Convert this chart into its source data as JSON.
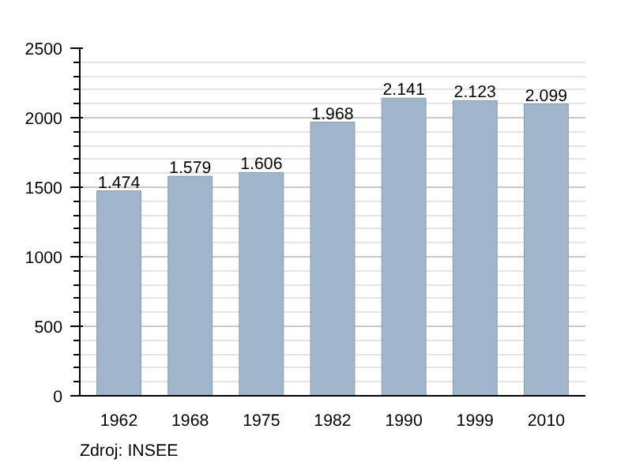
{
  "chart_data": {
    "type": "bar",
    "categories": [
      "1962",
      "1968",
      "1975",
      "1982",
      "1990",
      "1999",
      "2010"
    ],
    "values": [
      1474,
      1579,
      1606,
      1968,
      2141,
      2123,
      2099
    ],
    "value_labels": [
      "1.474",
      "1.579",
      "1.606",
      "1.968",
      "2.141",
      "2.123",
      "2.099"
    ],
    "color": "#a0b6cc",
    "ylim": [
      0,
      2500
    ],
    "yticks": [
      0,
      500,
      1000,
      1500,
      2000,
      2500
    ],
    "grid": "y",
    "annotations": [
      "Zdroj: INSEE"
    ]
  }
}
